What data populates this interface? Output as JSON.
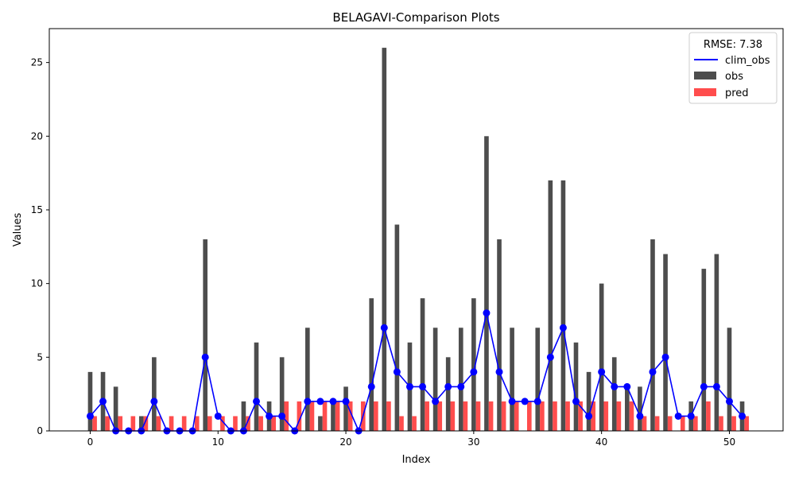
{
  "chart_data": {
    "type": "bar",
    "title": "BELAGAVI-Comparison Plots",
    "xlabel": "Index",
    "ylabel": "Values",
    "xlim": [
      -3.2,
      54.2
    ],
    "ylim": [
      0,
      27.3
    ],
    "xticks": [
      0,
      10,
      20,
      30,
      40,
      50
    ],
    "yticks": [
      0,
      5,
      10,
      15,
      20,
      25
    ],
    "grid": false,
    "legend": {
      "title": "RMSE: 7.38",
      "placement": "top-right",
      "entries": [
        "clim_obs",
        "obs",
        "pred"
      ]
    },
    "x": [
      0,
      1,
      2,
      3,
      4,
      5,
      6,
      7,
      8,
      9,
      10,
      11,
      12,
      13,
      14,
      15,
      16,
      17,
      18,
      19,
      20,
      21,
      22,
      23,
      24,
      25,
      26,
      27,
      28,
      29,
      30,
      31,
      32,
      33,
      34,
      35,
      36,
      37,
      38,
      39,
      40,
      41,
      42,
      43,
      44,
      45,
      46,
      47,
      48,
      49,
      50,
      51
    ],
    "series": [
      {
        "name": "obs",
        "kind": "bar",
        "color": "#4d4d4d",
        "values": [
          4,
          4,
          3,
          0,
          1,
          5,
          0,
          0,
          0,
          13,
          0,
          0,
          2,
          6,
          2,
          5,
          0,
          7,
          1,
          2,
          3,
          0,
          9,
          26,
          14,
          6,
          9,
          7,
          5,
          7,
          9,
          20,
          13,
          7,
          0,
          7,
          17,
          17,
          6,
          4,
          10,
          5,
          3,
          3,
          13,
          12,
          0,
          2,
          11,
          12,
          7,
          2
        ]
      },
      {
        "name": "pred",
        "kind": "bar",
        "color": "#ff4d4d",
        "values": [
          1,
          1,
          1,
          1,
          1,
          1,
          1,
          1,
          1,
          1,
          1,
          1,
          1,
          1,
          1,
          2,
          2,
          2,
          2,
          2,
          2,
          2,
          2,
          2,
          1,
          1,
          2,
          2,
          2,
          2,
          2,
          2,
          2,
          2,
          2,
          2,
          2,
          2,
          2,
          2,
          2,
          2,
          2,
          1,
          1,
          1,
          1,
          1,
          2,
          1,
          1,
          1
        ]
      },
      {
        "name": "clim_obs",
        "kind": "line",
        "color": "#0000ff",
        "values": [
          1,
          2,
          0,
          0,
          0,
          2,
          0,
          0,
          0,
          5,
          1,
          0,
          0,
          2,
          1,
          1,
          0,
          2,
          2,
          2,
          2,
          0,
          3,
          7,
          4,
          3,
          3,
          2,
          3,
          3,
          4,
          8,
          4,
          2,
          2,
          2,
          5,
          7,
          2,
          1,
          4,
          3,
          3,
          1,
          4,
          5,
          1,
          1,
          3,
          3,
          2,
          1
        ]
      }
    ]
  }
}
